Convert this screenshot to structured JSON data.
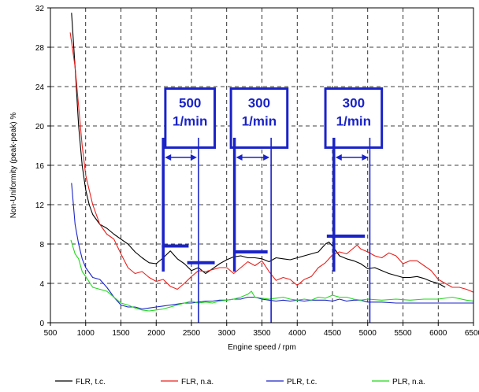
{
  "chart_data": {
    "type": "line",
    "title": "",
    "xlabel": "Engine speed / rpm",
    "ylabel": "Non-Uniformity (peak-peak) %",
    "xlim": [
      500,
      6500
    ],
    "ylim": [
      0,
      32
    ],
    "x_ticks": [
      500,
      1000,
      1500,
      2000,
      2500,
      3000,
      3500,
      4000,
      4500,
      5000,
      5500,
      6000,
      6500
    ],
    "y_ticks": [
      0,
      4,
      8,
      12,
      16,
      20,
      24,
      28,
      32
    ],
    "grid": "dashed",
    "legend_position": "bottom",
    "colors": {
      "annotation": "#1a23c8"
    },
    "series": [
      {
        "name": "FLR, t.c.",
        "color": "#000000",
        "points": [
          [
            800,
            31.5
          ],
          [
            850,
            26
          ],
          [
            900,
            20
          ],
          [
            950,
            16
          ],
          [
            1000,
            13.5
          ],
          [
            1050,
            12
          ],
          [
            1100,
            11
          ],
          [
            1200,
            10
          ],
          [
            1300,
            9.6
          ],
          [
            1400,
            9.0
          ],
          [
            1500,
            8.5
          ],
          [
            1600,
            8.0
          ],
          [
            1700,
            7.2
          ],
          [
            1800,
            6.6
          ],
          [
            1900,
            6.1
          ],
          [
            2000,
            6.0
          ],
          [
            2100,
            6.6
          ],
          [
            2200,
            7.3
          ],
          [
            2300,
            6.5
          ],
          [
            2400,
            6.0
          ],
          [
            2500,
            5.3
          ],
          [
            2600,
            5.6
          ],
          [
            2700,
            5.0
          ],
          [
            2800,
            5.5
          ],
          [
            2900,
            6.0
          ],
          [
            3000,
            6.4
          ],
          [
            3100,
            6.7
          ],
          [
            3200,
            6.8
          ],
          [
            3300,
            6.6
          ],
          [
            3400,
            6.6
          ],
          [
            3500,
            6.5
          ],
          [
            3600,
            6.2
          ],
          [
            3700,
            6.6
          ],
          [
            3800,
            6.5
          ],
          [
            3900,
            6.4
          ],
          [
            4000,
            6.6
          ],
          [
            4100,
            6.8
          ],
          [
            4200,
            7.0
          ],
          [
            4300,
            7.2
          ],
          [
            4400,
            8.0
          ],
          [
            4450,
            8.2
          ],
          [
            4500,
            7.8
          ],
          [
            4600,
            6.8
          ],
          [
            4700,
            6.5
          ],
          [
            4800,
            6.3
          ],
          [
            4900,
            6.0
          ],
          [
            5000,
            5.5
          ],
          [
            5100,
            5.6
          ],
          [
            5200,
            5.3
          ],
          [
            5300,
            5.0
          ],
          [
            5400,
            4.8
          ],
          [
            5500,
            4.6
          ],
          [
            5600,
            4.6
          ],
          [
            5700,
            4.7
          ],
          [
            5800,
            4.5
          ],
          [
            5900,
            4.2
          ],
          [
            6000,
            4.0
          ],
          [
            6100,
            3.6
          ]
        ]
      },
      {
        "name": "FLR, n.a.",
        "color": "#e8201c",
        "points": [
          [
            780,
            29.5
          ],
          [
            850,
            26
          ],
          [
            900,
            22
          ],
          [
            950,
            18
          ],
          [
            1000,
            15
          ],
          [
            1050,
            13.5
          ],
          [
            1100,
            12
          ],
          [
            1200,
            10
          ],
          [
            1300,
            9.0
          ],
          [
            1400,
            8.5
          ],
          [
            1500,
            7.0
          ],
          [
            1600,
            5.6
          ],
          [
            1700,
            5.0
          ],
          [
            1800,
            5.2
          ],
          [
            1900,
            4.6
          ],
          [
            2000,
            4.2
          ],
          [
            2100,
            4.4
          ],
          [
            2200,
            3.7
          ],
          [
            2300,
            3.4
          ],
          [
            2400,
            4.0
          ],
          [
            2500,
            4.7
          ],
          [
            2600,
            5.3
          ],
          [
            2700,
            5.2
          ],
          [
            2800,
            5.4
          ],
          [
            2900,
            5.6
          ],
          [
            3000,
            5.6
          ],
          [
            3100,
            5.0
          ],
          [
            3200,
            5.6
          ],
          [
            3300,
            6.2
          ],
          [
            3400,
            5.8
          ],
          [
            3500,
            6.3
          ],
          [
            3600,
            5.2
          ],
          [
            3700,
            4.3
          ],
          [
            3800,
            4.6
          ],
          [
            3900,
            4.4
          ],
          [
            4000,
            3.8
          ],
          [
            4100,
            4.4
          ],
          [
            4200,
            4.7
          ],
          [
            4300,
            5.6
          ],
          [
            4400,
            6.1
          ],
          [
            4500,
            6.9
          ],
          [
            4600,
            7.2
          ],
          [
            4700,
            7.0
          ],
          [
            4800,
            7.6
          ],
          [
            4850,
            7.9
          ],
          [
            4900,
            7.5
          ],
          [
            5000,
            7.2
          ],
          [
            5100,
            6.8
          ],
          [
            5200,
            6.6
          ],
          [
            5300,
            7.1
          ],
          [
            5400,
            6.8
          ],
          [
            5500,
            6.0
          ],
          [
            5600,
            6.3
          ],
          [
            5700,
            6.3
          ],
          [
            5800,
            5.8
          ],
          [
            5900,
            5.3
          ],
          [
            6000,
            4.4
          ],
          [
            6100,
            4.0
          ],
          [
            6200,
            3.6
          ],
          [
            6300,
            3.6
          ],
          [
            6400,
            3.4
          ],
          [
            6500,
            3.1
          ]
        ]
      },
      {
        "name": "PLR, t.c.",
        "color": "#1a23c8",
        "points": [
          [
            800,
            14.2
          ],
          [
            850,
            10
          ],
          [
            900,
            8.0
          ],
          [
            950,
            6.5
          ],
          [
            1000,
            5.6
          ],
          [
            1100,
            4.6
          ],
          [
            1200,
            4.4
          ],
          [
            1300,
            3.6
          ],
          [
            1400,
            2.6
          ],
          [
            1500,
            1.8
          ],
          [
            1600,
            1.6
          ],
          [
            1700,
            1.6
          ],
          [
            1800,
            1.4
          ],
          [
            1900,
            1.5
          ],
          [
            2000,
            1.6
          ],
          [
            2100,
            1.7
          ],
          [
            2200,
            1.8
          ],
          [
            2300,
            1.9
          ],
          [
            2400,
            2.0
          ],
          [
            2500,
            2.0
          ],
          [
            2600,
            2.1
          ],
          [
            2700,
            2.2
          ],
          [
            2800,
            2.2
          ],
          [
            2900,
            2.3
          ],
          [
            3000,
            2.3
          ],
          [
            3100,
            2.4
          ],
          [
            3200,
            2.4
          ],
          [
            3300,
            2.6
          ],
          [
            3400,
            2.6
          ],
          [
            3500,
            2.4
          ],
          [
            3600,
            2.3
          ],
          [
            3700,
            2.2
          ],
          [
            3800,
            2.3
          ],
          [
            3900,
            2.2
          ],
          [
            4000,
            2.3
          ],
          [
            4100,
            2.2
          ],
          [
            4200,
            2.3
          ],
          [
            4300,
            2.3
          ],
          [
            4400,
            2.3
          ],
          [
            4500,
            2.2
          ],
          [
            4600,
            2.4
          ],
          [
            4700,
            2.2
          ],
          [
            4800,
            2.3
          ],
          [
            4900,
            2.3
          ],
          [
            5000,
            2.1
          ],
          [
            5200,
            2.1
          ],
          [
            5400,
            2.0
          ],
          [
            5600,
            2.0
          ],
          [
            5800,
            2.0
          ],
          [
            6000,
            2.0
          ],
          [
            6200,
            2.0
          ],
          [
            6400,
            2.0
          ],
          [
            6500,
            2.0
          ]
        ]
      },
      {
        "name": "PLR, n.a.",
        "color": "#22d81c",
        "points": [
          [
            790,
            8.4
          ],
          [
            850,
            7.0
          ],
          [
            900,
            6.5
          ],
          [
            950,
            5.2
          ],
          [
            1000,
            4.7
          ],
          [
            1100,
            3.6
          ],
          [
            1200,
            3.4
          ],
          [
            1300,
            3.2
          ],
          [
            1400,
            2.6
          ],
          [
            1500,
            2.0
          ],
          [
            1600,
            1.8
          ],
          [
            1700,
            1.5
          ],
          [
            1800,
            1.3
          ],
          [
            1900,
            1.2
          ],
          [
            2000,
            1.3
          ],
          [
            2100,
            1.4
          ],
          [
            2200,
            1.6
          ],
          [
            2300,
            1.8
          ],
          [
            2400,
            2.0
          ],
          [
            2500,
            2.2
          ],
          [
            2600,
            2.0
          ],
          [
            2700,
            2.1
          ],
          [
            2800,
            2.0
          ],
          [
            2900,
            2.2
          ],
          [
            3000,
            2.3
          ],
          [
            3100,
            2.4
          ],
          [
            3200,
            2.6
          ],
          [
            3300,
            2.9
          ],
          [
            3350,
            3.2
          ],
          [
            3400,
            2.6
          ],
          [
            3500,
            2.5
          ],
          [
            3600,
            2.4
          ],
          [
            3700,
            2.5
          ],
          [
            3800,
            2.6
          ],
          [
            3900,
            2.4
          ],
          [
            4000,
            2.3
          ],
          [
            4100,
            2.4
          ],
          [
            4200,
            2.3
          ],
          [
            4300,
            2.6
          ],
          [
            4400,
            2.5
          ],
          [
            4500,
            2.8
          ],
          [
            4600,
            2.6
          ],
          [
            4700,
            2.6
          ],
          [
            4800,
            2.4
          ],
          [
            4900,
            2.3
          ],
          [
            5000,
            2.4
          ],
          [
            5200,
            2.3
          ],
          [
            5400,
            2.4
          ],
          [
            5600,
            2.3
          ],
          [
            5800,
            2.4
          ],
          [
            6000,
            2.4
          ],
          [
            6200,
            2.6
          ],
          [
            6400,
            2.3
          ],
          [
            6500,
            2.2
          ]
        ]
      }
    ],
    "annotations": [
      {
        "line1": "500",
        "line2": "1/min",
        "box_x": [
          2130,
          2830
        ],
        "box_y": [
          23.8,
          17.8
        ],
        "bars": [
          2100,
          2600
        ],
        "bar_top": 18.8,
        "bar_bottom": 5.2,
        "arrow_y": 16.8,
        "shelves": [
          {
            "x": [
              2080,
              2460
            ],
            "y": 7.8
          },
          {
            "x": [
              2440,
              2830
            ],
            "y": 6.1
          }
        ]
      },
      {
        "line1": "300",
        "line2": "1/min",
        "box_x": [
          3060,
          3860
        ],
        "box_y": [
          23.8,
          17.8
        ],
        "bars": [
          3110,
          3630
        ],
        "bar_top": 18.8,
        "bar_bottom": 5.2,
        "arrow_y": 16.8,
        "shelves": [
          {
            "x": [
              3110,
              3580
            ],
            "y": 7.2
          }
        ]
      },
      {
        "line1": "300",
        "line2": "1/min",
        "box_x": [
          4400,
          5200
        ],
        "box_y": [
          23.8,
          17.8
        ],
        "bars": [
          4520,
          5030
        ],
        "bar_top": 18.8,
        "bar_bottom": 5.2,
        "arrow_y": 16.8,
        "shelves": [
          {
            "x": [
              4420,
              4960
            ],
            "y": 8.8
          }
        ]
      }
    ]
  }
}
